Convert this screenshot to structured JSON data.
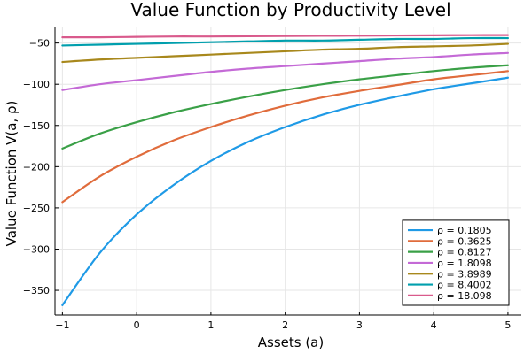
{
  "chart_data": {
    "type": "line",
    "title": "Value Function by Productivity Level",
    "xlabel": "Assets (a)",
    "ylabel": "Value Function V(a, ρ)",
    "xlim": [
      -1.1,
      5.18
    ],
    "ylim": [
      -380,
      -30
    ],
    "xticks": [
      -1,
      0,
      1,
      2,
      3,
      4,
      5
    ],
    "yticks": [
      -350,
      -300,
      -250,
      -200,
      -150,
      -100,
      -50
    ],
    "grid": true,
    "legend_position": "bottom-right",
    "x": [
      -1,
      -0.5,
      0,
      0.5,
      1,
      1.5,
      2,
      2.5,
      3,
      3.5,
      4,
      4.5,
      5
    ],
    "series": [
      {
        "name": "ρ = 0.1805",
        "color": "#1f9ae6",
        "values": [
          -368,
          -305,
          -258,
          -222,
          -193,
          -170,
          -152,
          -137,
          -125,
          -115,
          -106,
          -99,
          -92
        ]
      },
      {
        "name": "ρ = 0.3625",
        "color": "#e06c3c",
        "values": [
          -243,
          -212,
          -188,
          -168,
          -152,
          -138,
          -126,
          -116,
          -108,
          -101,
          -94,
          -89,
          -84
        ]
      },
      {
        "name": "ρ = 0.8127",
        "color": "#3aa047",
        "values": [
          -178,
          -160,
          -146,
          -134,
          -124,
          -115,
          -107,
          -100,
          -94,
          -89,
          -84,
          -80,
          -77
        ]
      },
      {
        "name": "ρ = 1.8098",
        "color": "#c46ad6",
        "values": [
          -107,
          -100,
          -95,
          -90,
          -85,
          -81,
          -78,
          -75,
          -72,
          -69,
          -67,
          -64,
          -62
        ]
      },
      {
        "name": "ρ = 3.8989",
        "color": "#a8881c",
        "values": [
          -73,
          -70,
          -68,
          -66,
          -64,
          -62,
          -60,
          -58,
          -57,
          -55,
          -54,
          -53,
          -51
        ]
      },
      {
        "name": "ρ = 8.4002",
        "color": "#009fad",
        "values": [
          -53,
          -52,
          -51,
          -50,
          -49,
          -48,
          -47,
          -47,
          -46,
          -45,
          -45,
          -44,
          -44
        ]
      },
      {
        "name": "ρ = 18.098",
        "color": "#d95a8c",
        "values": [
          -43,
          -43,
          -42.5,
          -42,
          -42,
          -41.7,
          -41.5,
          -41.2,
          -41,
          -40.8,
          -40.6,
          -40.4,
          -40.3
        ]
      }
    ]
  }
}
